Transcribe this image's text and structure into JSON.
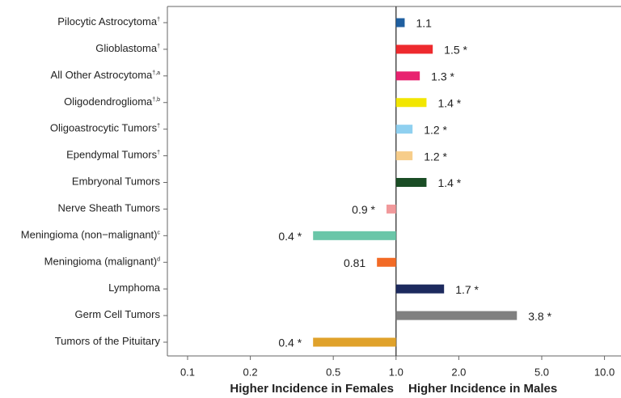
{
  "chart_data": {
    "type": "bar",
    "orientation": "horizontal",
    "log_scale": true,
    "categories": [
      "Pilocytic Astrocytoma",
      "Glioblastoma",
      "All Other Astrocytoma",
      "Oligodendroglioma",
      "Oligoastrocytic Tumors",
      "Ependymal Tumors",
      "Embryonal Tumors",
      "Nerve Sheath Tumors",
      "Meningioma (non−malignant)",
      "Meningioma (malignant)",
      "Lymphoma",
      "Germ Cell Tumors",
      "Tumors of the Pituitary"
    ],
    "category_notes": [
      "†",
      "†",
      "†,a",
      "†,b",
      "†",
      "†",
      null,
      null,
      "c",
      "d",
      null,
      null,
      null
    ],
    "values": [
      1.1,
      1.5,
      1.3,
      1.4,
      1.2,
      1.2,
      1.4,
      0.9,
      0.4,
      0.81,
      1.7,
      3.8,
      0.4
    ],
    "value_labels": [
      "1.1",
      "1.5 *",
      "1.3 *",
      "1.4 *",
      "1.2 *",
      "1.2 *",
      "1.4 *",
      "0.9 *",
      "0.4 *",
      "0.81",
      "1.7 *",
      "3.8 *",
      "0.4 *"
    ],
    "colors": [
      "#1f5fa0",
      "#ee2a2e",
      "#e8226f",
      "#f2e600",
      "#8fd0f0",
      "#f7cd8a",
      "#1a4d25",
      "#f1999b",
      "#6ac6a8",
      "#f26a25",
      "#1d2a5e",
      "#808080",
      "#e0a22b"
    ],
    "xlim": [
      0.08,
      12
    ],
    "xticks": [
      0.1,
      0.2,
      0.5,
      {
        "value": 1,
        "label": "1.0"
      },
      {
        "value": 2,
        "label": "2.0"
      },
      {
        "value": 5,
        "label": "5.0"
      },
      {
        "value": 10,
        "label": "10.0"
      }
    ],
    "xlabel_left": "Higher Incidence in Females",
    "xlabel_right": "Higher Incidence in Males"
  }
}
